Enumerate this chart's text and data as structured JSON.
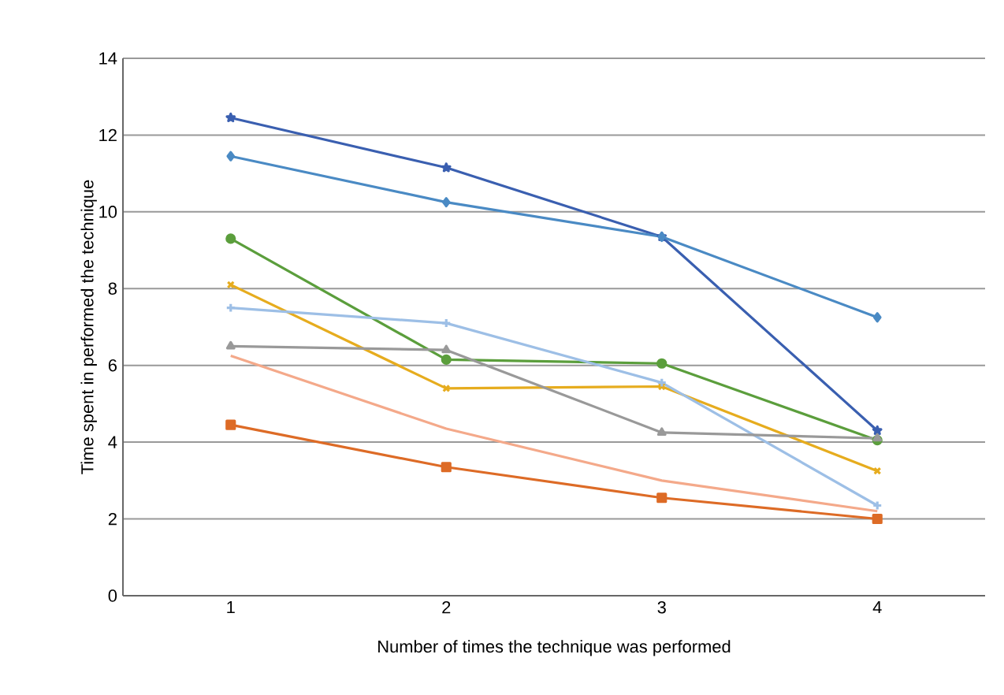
{
  "chart_data": {
    "type": "line",
    "xlabel": "Number of times the technique was performed",
    "ylabel": "Time spent in performed the technique",
    "categories": [
      "1",
      "2",
      "3",
      "4"
    ],
    "series": [
      {
        "color": "#3a5fb0",
        "marker": "star",
        "values": [
          12.45,
          11.15,
          9.35,
          4.3
        ]
      },
      {
        "color": "#4a8ac4",
        "marker": "diamond",
        "values": [
          11.45,
          10.25,
          9.35,
          7.25
        ]
      },
      {
        "color": "#5b9e3c",
        "marker": "circle",
        "values": [
          9.3,
          6.15,
          6.05,
          4.05
        ]
      },
      {
        "color": "#e6ac1e",
        "marker": "cross",
        "values": [
          8.1,
          5.4,
          5.45,
          3.25
        ]
      },
      {
        "color": "#9dbfe6",
        "marker": "plus",
        "values": [
          7.5,
          7.1,
          5.55,
          2.35
        ]
      },
      {
        "color": "#999999",
        "marker": "triangle",
        "values": [
          6.5,
          6.4,
          4.25,
          4.1
        ]
      },
      {
        "color": "#f4a98a",
        "marker": "none",
        "values": [
          6.25,
          4.35,
          3.0,
          2.2
        ]
      },
      {
        "color": "#dd6b26",
        "marker": "square",
        "values": [
          4.45,
          3.35,
          2.55,
          2.0
        ]
      }
    ],
    "ylim": [
      0,
      14
    ],
    "yticks": [
      0,
      2,
      4,
      6,
      8,
      10,
      12,
      14
    ],
    "grid": "y"
  }
}
